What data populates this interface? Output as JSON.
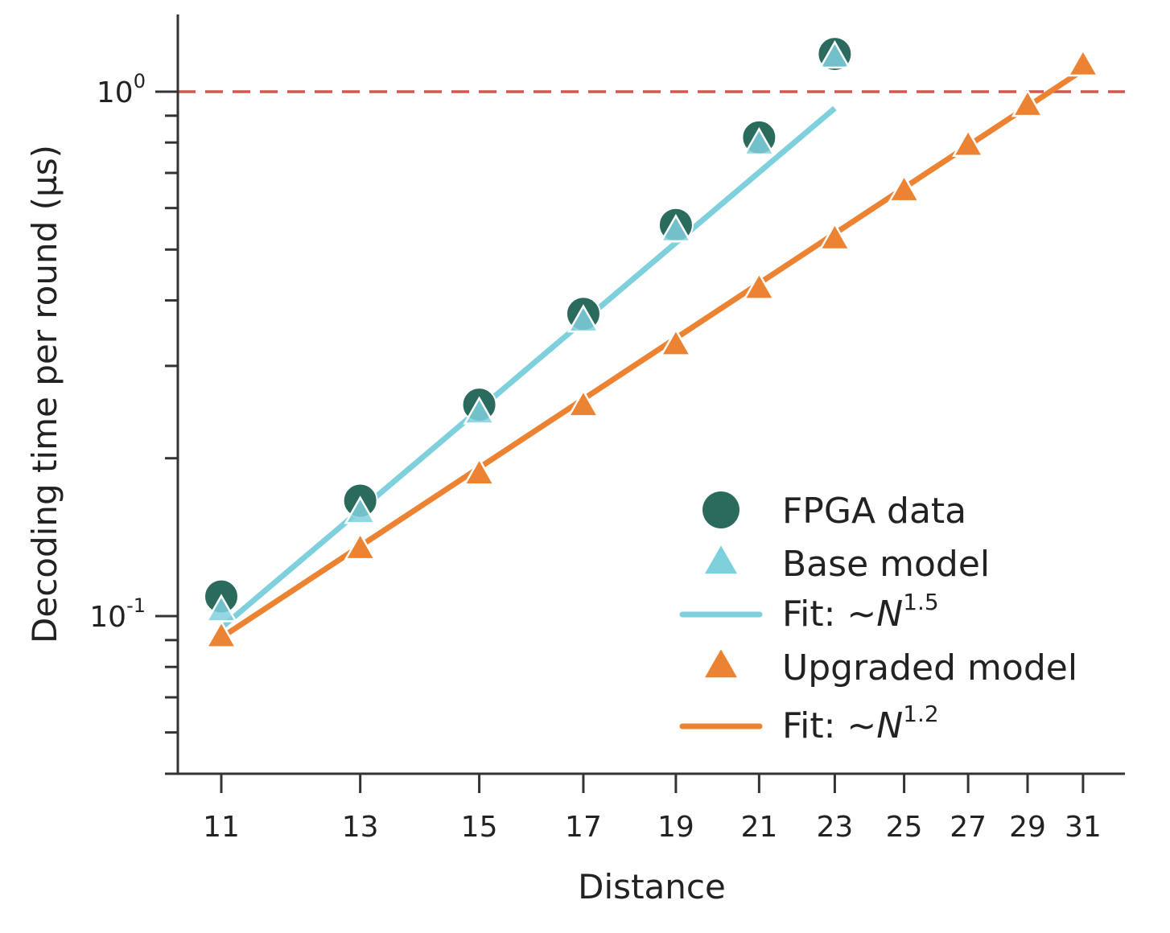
{
  "chart_data": {
    "type": "scatter",
    "title": "",
    "xlabel": "Distance",
    "ylabel": "Decoding time per round (µs)",
    "xscale": "log",
    "yscale": "log",
    "xlim": [
      10.5,
      32.5
    ],
    "ylim": [
      0.05,
      1.4
    ],
    "xticks": [
      11,
      13,
      15,
      17,
      19,
      21,
      23,
      25,
      27,
      29,
      31
    ],
    "xtick_labels": [
      "11",
      "13",
      "15",
      "17",
      "19",
      "21",
      "23",
      "25",
      "27",
      "29",
      "31"
    ],
    "yticks_major": [
      0.1,
      1
    ],
    "ytick_labels": [
      {
        "base": "10",
        "exp": "-1"
      },
      {
        "base": "10",
        "exp": "0"
      }
    ],
    "yticks_minor": [
      0.06,
      0.07,
      0.08,
      0.09,
      0.2,
      0.3,
      0.4,
      0.5,
      0.6,
      0.7,
      0.8,
      0.9
    ],
    "grid": false,
    "reference_line": {
      "y": 1.0,
      "style": "dashed",
      "color": "#d9534f"
    },
    "series": [
      {
        "name": "FPGA data",
        "kind": "marker",
        "marker": "circle",
        "color": "#2a6b5e",
        "x": [
          11,
          13,
          15,
          17,
          19,
          21,
          23
        ],
        "y": [
          0.109,
          0.166,
          0.253,
          0.377,
          0.557,
          0.818,
          1.18
        ]
      },
      {
        "name": "Base model",
        "kind": "marker",
        "marker": "triangle",
        "color": "#7fd0dd",
        "x": [
          11,
          13,
          15,
          17,
          19,
          21,
          23
        ],
        "y": [
          0.102,
          0.157,
          0.243,
          0.364,
          0.541,
          0.792,
          1.16
        ]
      },
      {
        "name": "Fit: ~N^1.5",
        "label_main": "Fit: ~",
        "label_var": "N",
        "label_exp": "1.5",
        "kind": "line",
        "color": "#7fd0dd",
        "x": [
          11,
          23
        ],
        "y": [
          0.095,
          0.93
        ]
      },
      {
        "name": "Upgraded model",
        "kind": "marker",
        "marker": "triangle",
        "color": "#ec8332",
        "x": [
          11,
          13,
          15,
          17,
          19,
          21,
          23,
          25,
          27,
          29,
          31
        ],
        "y": [
          0.091,
          0.134,
          0.186,
          0.251,
          0.328,
          0.42,
          0.522,
          0.645,
          0.787,
          0.938,
          1.12
        ]
      },
      {
        "name": "Fit: ~N^1.2",
        "label_main": "Fit: ~",
        "label_var": "N",
        "label_exp": "1.2",
        "kind": "line",
        "color": "#ec8332",
        "x": [
          11,
          31
        ],
        "y": [
          0.091,
          1.1
        ]
      }
    ],
    "legend": {
      "placement": "lower-right",
      "entries": [
        {
          "label": "FPGA data",
          "symbol": "circle",
          "color": "#2a6b5e"
        },
        {
          "label": "Base model",
          "symbol": "triangle",
          "color": "#7fd0dd"
        },
        {
          "label_main": "Fit: ~",
          "label_var": "N",
          "label_exp": "1.5",
          "symbol": "line",
          "color": "#7fd0dd"
        },
        {
          "label": "Upgraded model",
          "symbol": "triangle",
          "color": "#ec8332"
        },
        {
          "label_main": "Fit: ~",
          "label_var": "N",
          "label_exp": "1.2",
          "symbol": "line",
          "color": "#ec8332"
        }
      ]
    }
  }
}
